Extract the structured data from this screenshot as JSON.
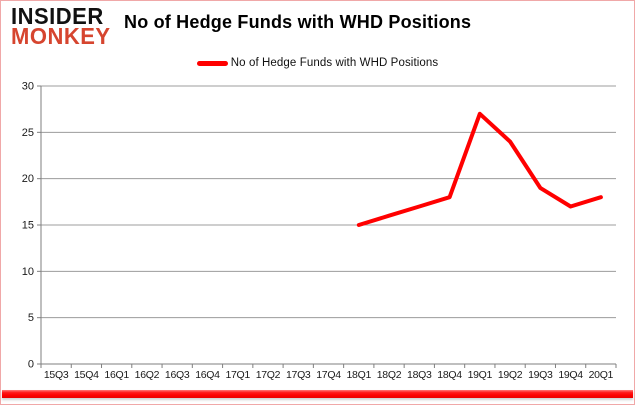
{
  "logo": {
    "line1": "INSIDER",
    "line2": "MONKEY"
  },
  "header": {
    "title": "No of Hedge Funds with WHD Positions"
  },
  "legend": {
    "label": "No of Hedge Funds with WHD Positions",
    "swatch_color": "#ff0000"
  },
  "chart_data": {
    "type": "line",
    "title": "No of Hedge Funds with WHD Positions",
    "categories": [
      "15Q3",
      "15Q4",
      "16Q1",
      "16Q2",
      "16Q3",
      "16Q4",
      "17Q1",
      "17Q2",
      "17Q3",
      "17Q4",
      "18Q1",
      "18Q2",
      "18Q3",
      "18Q4",
      "19Q1",
      "19Q2",
      "19Q3",
      "19Q4",
      "20Q1"
    ],
    "series": [
      {
        "name": "No of Hedge Funds with WHD Positions",
        "color": "#ff0000",
        "values": [
          null,
          null,
          null,
          null,
          null,
          null,
          null,
          null,
          null,
          null,
          15,
          16,
          17,
          18,
          27,
          24,
          19,
          17,
          18
        ]
      }
    ],
    "xlabel": "",
    "ylabel": "",
    "ylim": [
      0,
      30
    ],
    "ytick_interval": 5,
    "yticks": [
      0,
      5,
      10,
      15,
      20,
      25,
      30
    ],
    "grid": "horizontal",
    "legend_position": "top-center"
  },
  "colors": {
    "line_red": "#ff0000",
    "logo_red": "#d6452f",
    "gridline": "#9c9c9c",
    "axis": "#7f7f7f",
    "label_text": "#1a1a1a",
    "frame_border_pink": "#f0a8a8",
    "bottom_bar_red": "#fe0000"
  }
}
